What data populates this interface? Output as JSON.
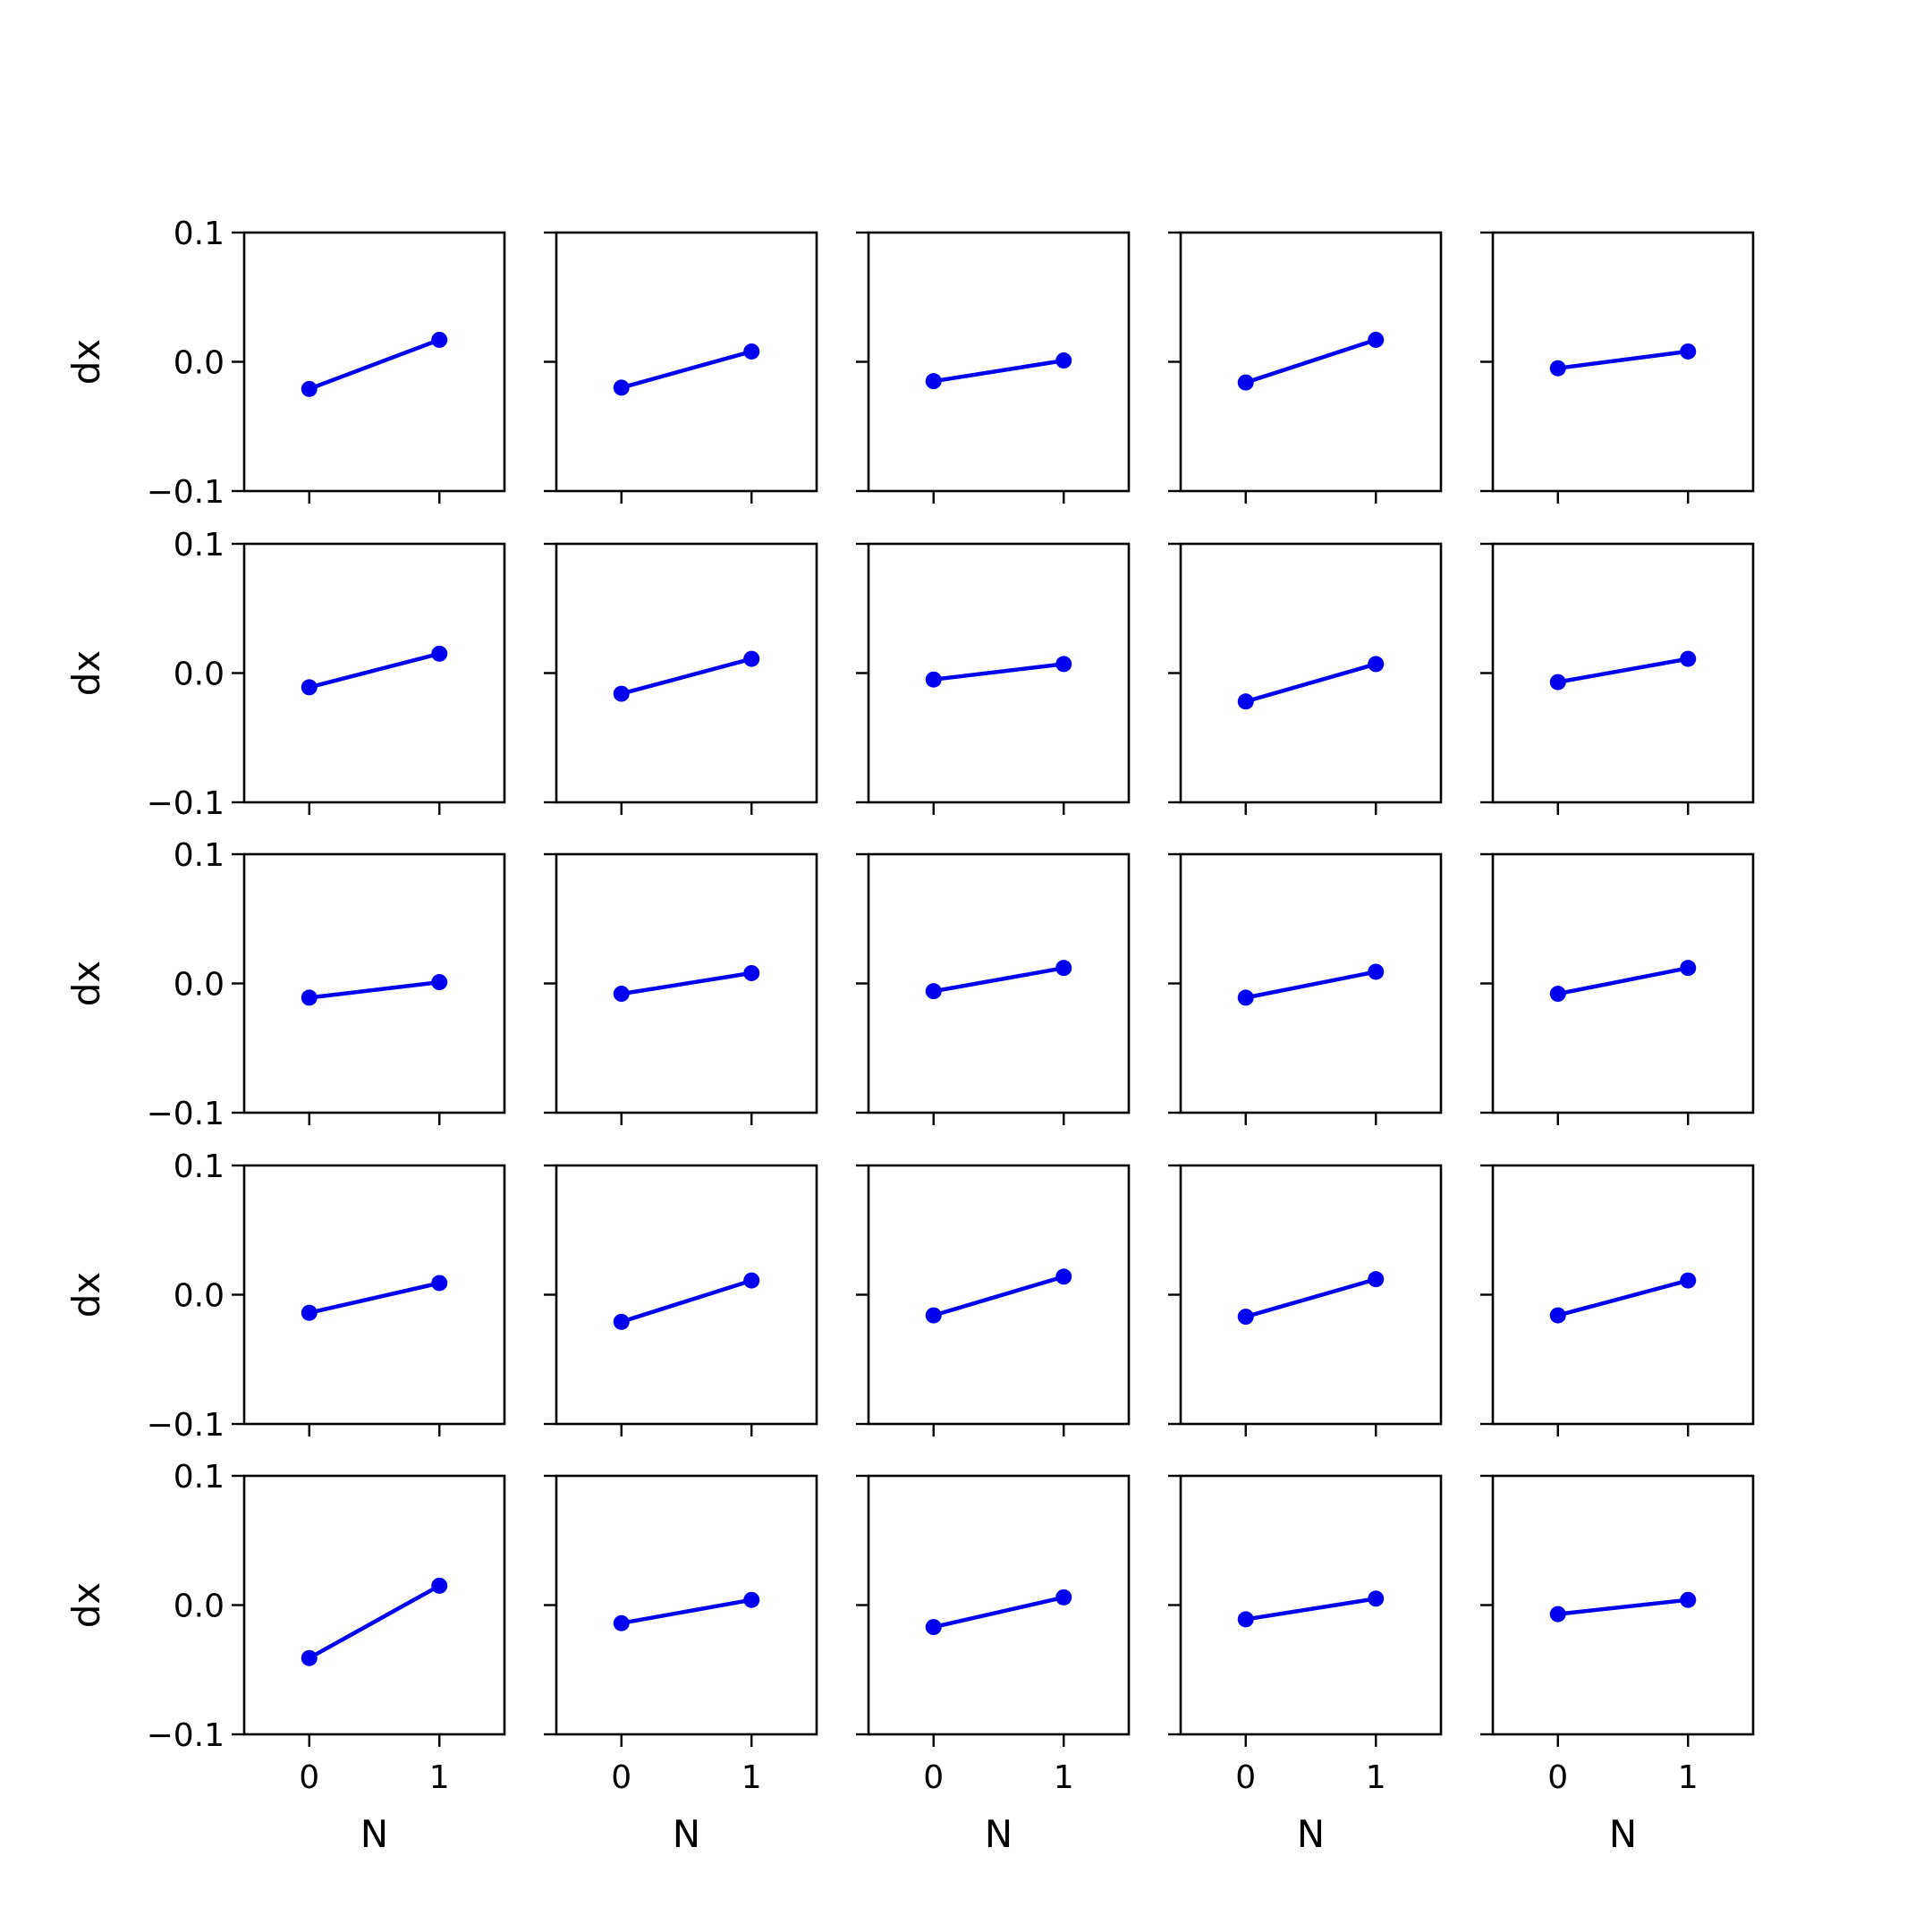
{
  "chart_data": {
    "type": "line",
    "layout": "5x5 grid of small multiples",
    "shared_axes": {
      "x": true,
      "y": true
    },
    "xlabel": "N",
    "ylabel": "dx",
    "x": [
      0,
      1
    ],
    "xticks": [
      "0",
      "1"
    ],
    "xlim": [
      -0.5,
      1.5
    ],
    "yticks": [
      "−0.1",
      "0.0",
      "0.1"
    ],
    "ytick_values": [
      -0.1,
      0.0,
      0.1
    ],
    "ylim": [
      -0.1,
      0.1
    ],
    "series_color": "#0000ee",
    "marker": "circle",
    "grid": false,
    "panels": [
      [
        [
          -0.021,
          0.017
        ],
        [
          -0.02,
          0.008
        ],
        [
          -0.015,
          0.001
        ],
        [
          -0.016,
          0.017
        ],
        [
          -0.005,
          0.008
        ]
      ],
      [
        [
          -0.011,
          0.015
        ],
        [
          -0.016,
          0.011
        ],
        [
          -0.005,
          0.007
        ],
        [
          -0.022,
          0.007
        ],
        [
          -0.007,
          0.011
        ]
      ],
      [
        [
          -0.011,
          0.001
        ],
        [
          -0.008,
          0.008
        ],
        [
          -0.006,
          0.012
        ],
        [
          -0.011,
          0.009
        ],
        [
          -0.008,
          0.012
        ]
      ],
      [
        [
          -0.014,
          0.009
        ],
        [
          -0.021,
          0.011
        ],
        [
          -0.016,
          0.014
        ],
        [
          -0.017,
          0.012
        ],
        [
          -0.016,
          0.011
        ]
      ],
      [
        [
          -0.041,
          0.015
        ],
        [
          -0.014,
          0.004
        ],
        [
          -0.017,
          0.006
        ],
        [
          -0.011,
          0.005
        ],
        [
          -0.007,
          0.004
        ]
      ]
    ]
  }
}
